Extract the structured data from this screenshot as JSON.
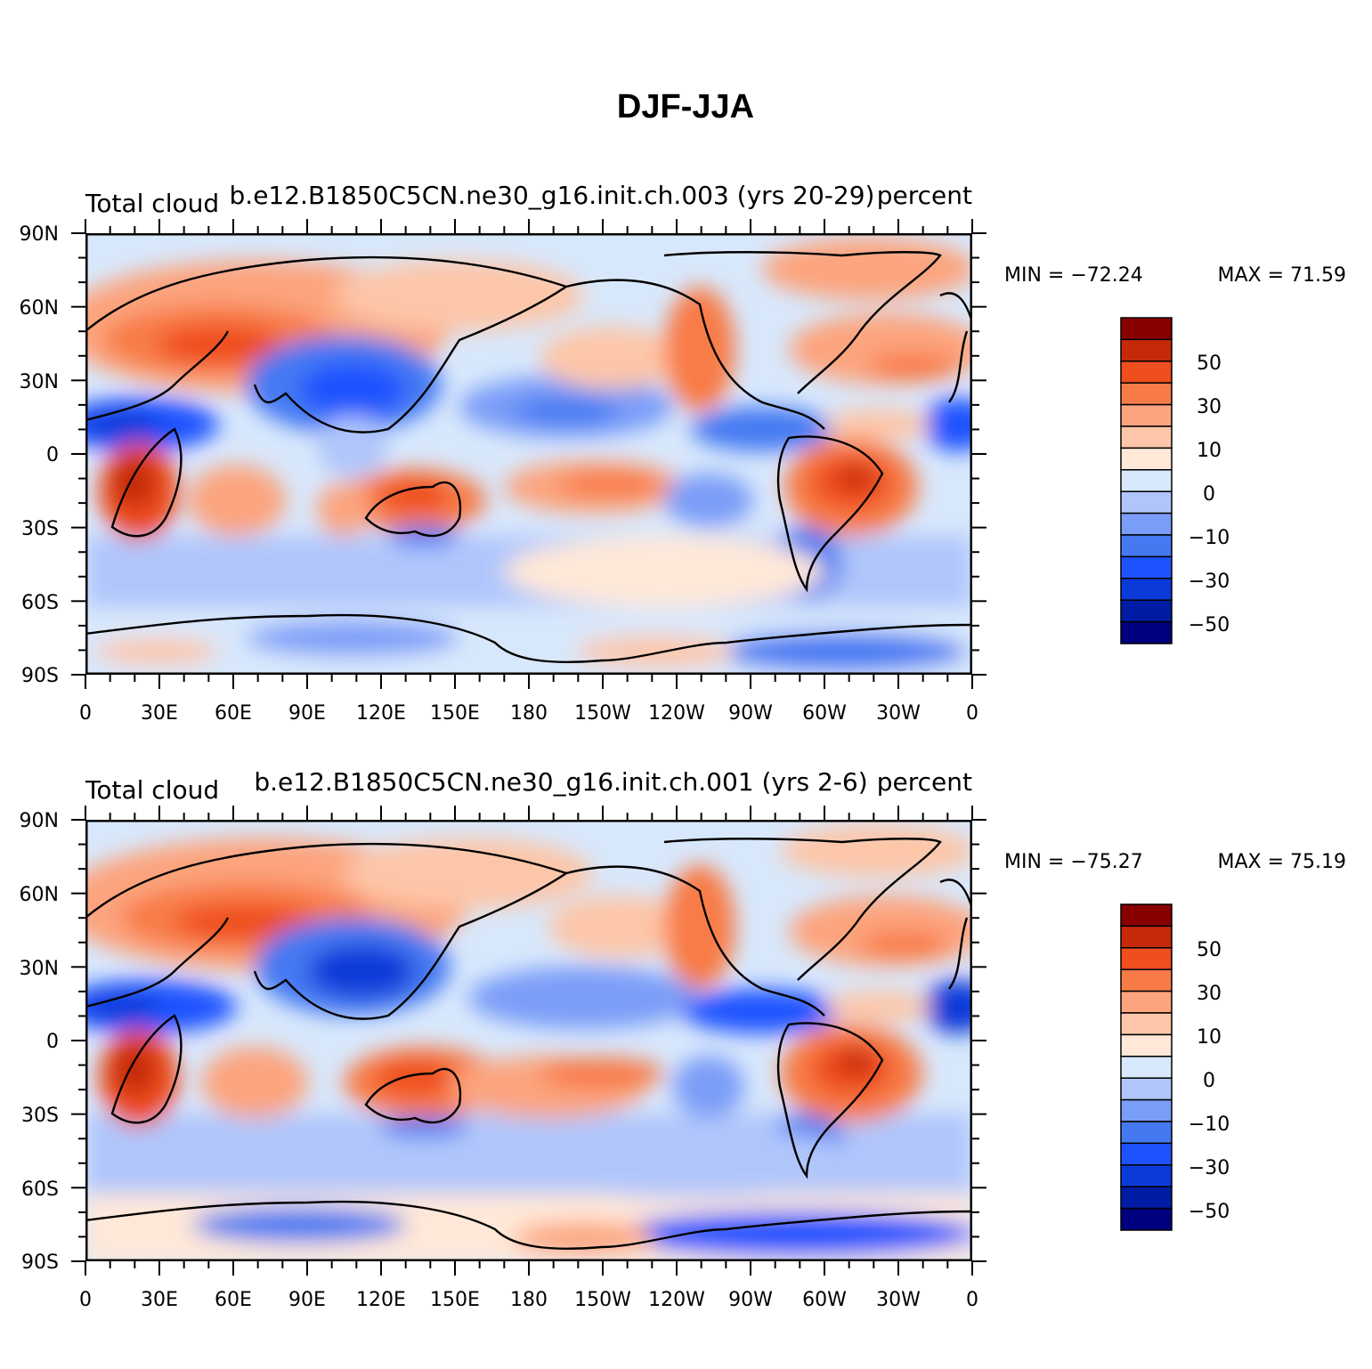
{
  "title": "DJF-JJA",
  "colors": {
    "levels": [
      "#00007f",
      "#001ca4",
      "#0a3ad8",
      "#1f52ff",
      "#4479f2",
      "#7a9df8",
      "#b0c6fb",
      "#d8e8fc",
      "#ffe8d8",
      "#fdc6a8",
      "#fca47e",
      "#f87b47",
      "#ef4e1f",
      "#c52a08",
      "#8a0000"
    ],
    "coast": "#000000",
    "frame": "#000000"
  },
  "colorbar": {
    "labels": [
      "50",
      "30",
      "10",
      "0",
      "−10",
      "−30",
      "−50"
    ]
  },
  "axes": {
    "lat_labels": [
      "90N",
      "60N",
      "30N",
      "0",
      "30S",
      "60S",
      "90S"
    ],
    "lon_labels": [
      "0",
      "30E",
      "60E",
      "90E",
      "120E",
      "150E",
      "180",
      "150W",
      "120W",
      "90W",
      "60W",
      "30W",
      "0"
    ]
  },
  "panels": [
    {
      "id": "top",
      "center_title": "b.e12.B1850C5CN.ne30_g16.init.ch.003 (yrs 20-29)",
      "left_title": "Total cloud",
      "right_title": "percent",
      "min_label": "MIN = −72.24",
      "max_label": "MAX =   71.59",
      "min": -72.24,
      "max": 71.59
    },
    {
      "id": "bottom",
      "center_title": "b.e12.B1850C5CN.ne30_g16.init.ch.001 (yrs 2-6)",
      "left_title": "Total cloud",
      "right_title": "percent",
      "min_label": "MIN = −75.27",
      "max_label": "MAX =   75.19",
      "min": -75.27,
      "max": 75.19
    }
  ],
  "chart_data": {
    "type": "heatmap",
    "title": "DJF-JJA",
    "variable": "Total cloud",
    "units": "percent",
    "contour_levels": [
      -60,
      -50,
      -40,
      -30,
      -20,
      -10,
      -5,
      0,
      5,
      10,
      20,
      30,
      40,
      50,
      60
    ],
    "colorbar_tick_values": [
      50,
      30,
      10,
      0,
      -10,
      -30,
      -50
    ],
    "lon_range": [
      0,
      360
    ],
    "lat_range": [
      -90,
      90
    ],
    "series": [
      {
        "name": "b.e12.B1850C5CN.ne30_g16.init.ch.003 (yrs 20-29)",
        "min": -72.24,
        "max": 71.59
      },
      {
        "name": "b.e12.B1850C5CN.ne30_g16.init.ch.001 (yrs 2-6)",
        "min": -75.27,
        "max": 75.19
      }
    ]
  }
}
